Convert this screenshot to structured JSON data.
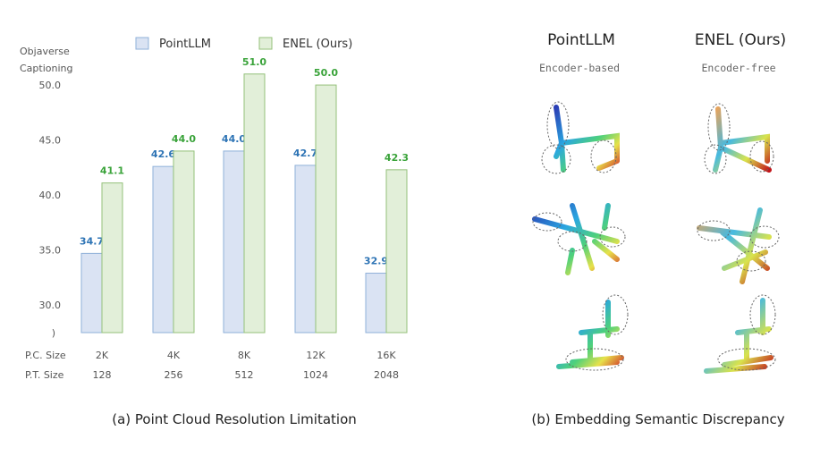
{
  "chart_data": {
    "type": "bar",
    "ylabel": "Objaverse Captioning",
    "ylim": [
      27.5,
      53.5
    ],
    "yticks": [
      "50.0",
      "45.0",
      "40.0",
      "35.0",
      "30.0"
    ],
    "yticks_values": [
      50,
      45,
      40,
      35,
      30
    ],
    "axis_break_mark": ")",
    "categories": [
      "2K",
      "4K",
      "8K",
      "12K",
      "16K"
    ],
    "row_labels": [
      "P.C. Size",
      "P.T. Size"
    ],
    "pt_sizes": [
      "128",
      "256",
      "512",
      "1024",
      "2048"
    ],
    "series": [
      {
        "name": "PointLLM",
        "values": [
          34.7,
          42.6,
          44.0,
          42.7,
          32.9
        ],
        "labels": [
          "34.7",
          "42.6",
          "44.0",
          "42.7",
          "32.9"
        ],
        "fill": "#dae3f3",
        "stroke": "#8fb0d9",
        "label_color": "#2e74b5"
      },
      {
        "name": "ENEL (Ours)",
        "values": [
          41.1,
          44.0,
          51.0,
          50.0,
          42.3
        ],
        "labels": [
          "41.1",
          "44.0",
          "51.0",
          "50.0",
          "42.3"
        ],
        "fill": "#e2efd9",
        "stroke": "#94c07a",
        "label_color": "#3aa33a"
      }
    ],
    "caption": "(a) Point Cloud Resolution Limitation"
  },
  "right_panel": {
    "col1_title": "PointLLM",
    "col1_sub": "Encoder-based",
    "col2_title": "ENEL (Ours)",
    "col2_sub": "Encoder-free",
    "caption": "(b) Embedding Semantic Discrepancy"
  }
}
